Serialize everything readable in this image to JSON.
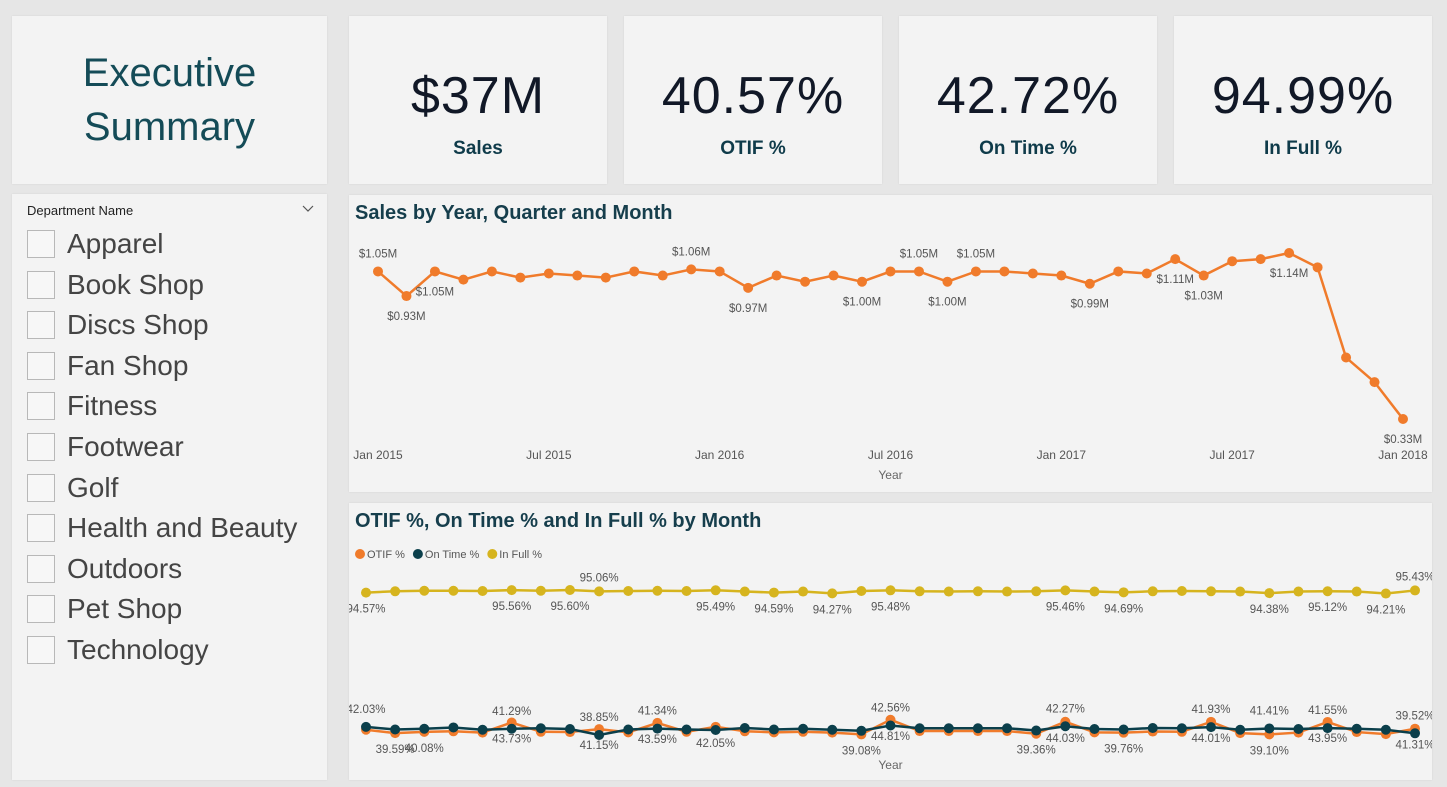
{
  "title": "Executive Summary",
  "cards": [
    {
      "value": "$37M",
      "label": "Sales"
    },
    {
      "value": "40.57%",
      "label": "OTIF %"
    },
    {
      "value": "42.72%",
      "label": "On Time %"
    },
    {
      "value": "94.99%",
      "label": "In Full %"
    }
  ],
  "slicer": {
    "header": "Department Name",
    "items": [
      "Apparel",
      "Book Shop",
      "Discs Shop",
      "Fan Shop",
      "Fitness",
      "Footwear",
      "Golf",
      "Health and Beauty",
      "Outdoors",
      "Pet Shop",
      "Technology"
    ]
  },
  "chart_data": [
    {
      "type": "line",
      "title": "Sales by Year, Quarter and Month",
      "x_label": "Year",
      "color": "#f07b2b",
      "categories": [
        "Jan 2015",
        null,
        null,
        null,
        null,
        null,
        "Jul 2015",
        null,
        null,
        null,
        null,
        null,
        "Jan 2016",
        null,
        null,
        null,
        null,
        null,
        "Jul 2016",
        null,
        null,
        null,
        null,
        null,
        "Jan 2017",
        null,
        null,
        null,
        null,
        null,
        "Jul 2017",
        null,
        null,
        null,
        null,
        null,
        "Jan 2018"
      ],
      "values": [
        1.05,
        0.93,
        1.05,
        1.01,
        1.05,
        1.02,
        1.04,
        1.03,
        1.02,
        1.05,
        1.03,
        1.06,
        1.05,
        0.97,
        1.03,
        1.0,
        1.03,
        1.0,
        1.05,
        1.05,
        1.0,
        1.05,
        1.05,
        1.04,
        1.03,
        0.99,
        1.05,
        1.04,
        1.11,
        1.03,
        1.1,
        1.11,
        1.14,
        1.07,
        0.63,
        0.51,
        0.33
      ],
      "value_labels": [
        "$1.05M",
        "$0.93M",
        "$1.05M",
        null,
        null,
        null,
        null,
        null,
        null,
        null,
        null,
        "$1.06M",
        null,
        "$0.97M",
        null,
        null,
        null,
        "$1.00M",
        null,
        "$1.05M",
        "$1.00M",
        "$1.05M",
        null,
        null,
        null,
        "$0.99M",
        null,
        null,
        "$1.11M",
        "$1.03M",
        null,
        null,
        "$1.14M",
        null,
        null,
        null,
        "$0.33M"
      ]
    },
    {
      "type": "line",
      "title": "OTIF %, On Time % and In Full % by Month",
      "x_label": "Year",
      "legend": "top-left",
      "series": [
        {
          "name": "OTIF %",
          "color": "#f07b2b",
          "values": [
            40.9,
            39.59,
            40.08,
            40.3,
            39.8,
            43.73,
            40.1,
            40.0,
            41.15,
            39.9,
            43.59,
            40.1,
            42.05,
            40.3,
            39.9,
            40.1,
            39.8,
            39.08,
            44.81,
            40.4,
            40.4,
            40.4,
            40.4,
            39.36,
            44.03,
            39.9,
            39.76,
            40.2,
            40.1,
            44.01,
            39.6,
            39.1,
            39.8,
            43.95,
            40.0,
            39.2,
            41.31
          ],
          "value_labels": [
            null,
            "39.59%",
            "40.08%",
            null,
            null,
            "43.73%",
            null,
            null,
            "41.15%",
            null,
            "43.59%",
            null,
            "42.05%",
            null,
            null,
            null,
            null,
            "39.08%",
            "44.81%",
            null,
            null,
            null,
            null,
            "39.36%",
            "44.03%",
            null,
            "39.76%",
            null,
            null,
            "44.01%",
            null,
            "39.10%",
            null,
            "43.95%",
            null,
            null,
            "41.31%"
          ]
        },
        {
          "name": "On Time %",
          "color": "#0b3f4b",
          "values": [
            42.03,
            41.0,
            41.3,
            41.8,
            40.9,
            41.29,
            41.5,
            41.2,
            38.85,
            41.0,
            41.34,
            41.0,
            40.8,
            41.6,
            41.0,
            41.3,
            40.9,
            40.5,
            42.56,
            41.5,
            41.5,
            41.5,
            41.5,
            40.6,
            42.27,
            41.2,
            41.0,
            41.6,
            41.5,
            41.93,
            40.9,
            41.41,
            41.2,
            41.55,
            41.3,
            40.9,
            39.52
          ],
          "value_labels": [
            "42.03%",
            null,
            null,
            null,
            null,
            "41.29%",
            null,
            null,
            "38.85%",
            null,
            "41.34%",
            null,
            null,
            null,
            null,
            null,
            null,
            null,
            "42.56%",
            null,
            null,
            null,
            null,
            null,
            "42.27%",
            null,
            null,
            null,
            null,
            "41.93%",
            null,
            "41.41%",
            null,
            "41.55%",
            null,
            null,
            "39.52%"
          ]
        },
        {
          "name": "In Full %",
          "color": "#d6b41e",
          "values": [
            94.57,
            95.1,
            95.3,
            95.3,
            95.2,
            95.56,
            95.3,
            95.6,
            95.06,
            95.2,
            95.3,
            95.2,
            95.49,
            95.0,
            94.59,
            95.0,
            94.27,
            95.2,
            95.48,
            95.1,
            95.0,
            95.1,
            95.0,
            95.1,
            95.46,
            95.0,
            94.69,
            95.1,
            95.2,
            95.1,
            95.0,
            94.38,
            95.0,
            95.12,
            95.0,
            94.21,
            95.43
          ],
          "value_labels": [
            "94.57%",
            null,
            null,
            null,
            null,
            "95.56%",
            null,
            "95.60%",
            "95.06%",
            null,
            null,
            null,
            "95.49%",
            null,
            "94.59%",
            null,
            "94.27%",
            null,
            "95.48%",
            null,
            null,
            null,
            null,
            null,
            "95.46%",
            null,
            "94.69%",
            null,
            null,
            null,
            null,
            "94.38%",
            null,
            "95.12%",
            null,
            "94.21%",
            "95.43%"
          ]
        }
      ]
    }
  ]
}
